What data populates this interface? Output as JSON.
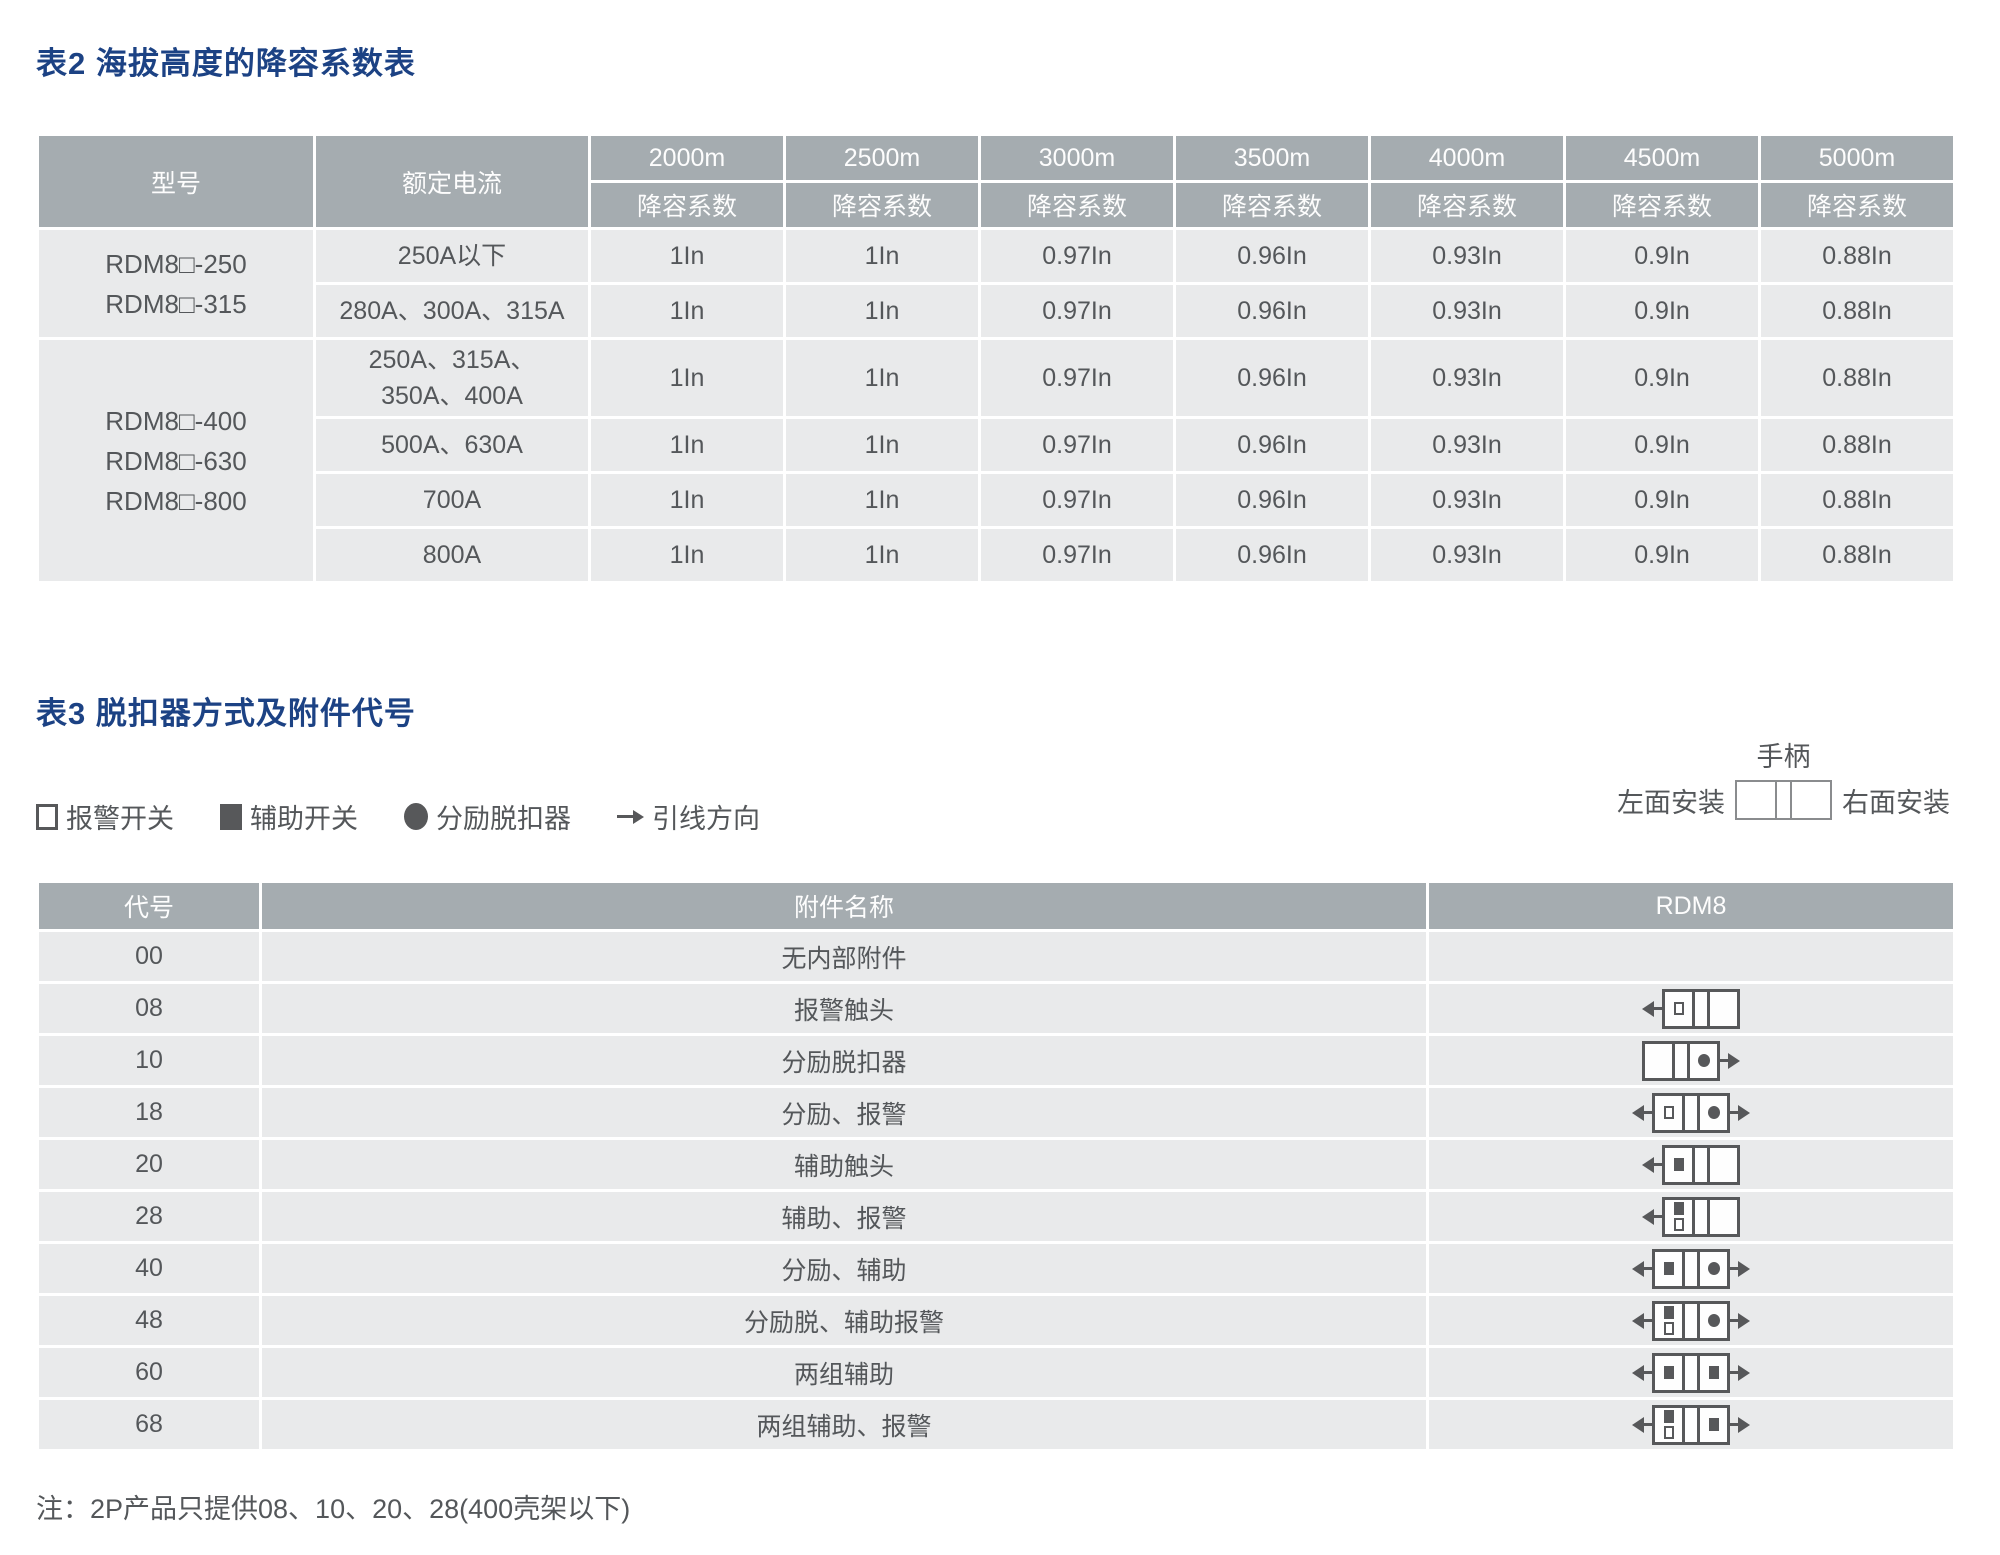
{
  "table2": {
    "title": "表2 海拔高度的降容系数表",
    "col_model": "型号",
    "col_current": "额定电流",
    "subheader": "降容系数",
    "altitudes": [
      "2000m",
      "2500m",
      "3000m",
      "3500m",
      "4000m",
      "4500m",
      "5000m"
    ],
    "groups": [
      {
        "models": "RDM8□-250\nRDM8□-315",
        "rows": [
          {
            "current": "250A以下",
            "values": [
              "1In",
              "1In",
              "0.97In",
              "0.96In",
              "0.93In",
              "0.9In",
              "0.88In"
            ]
          },
          {
            "current": "280A、300A、315A",
            "values": [
              "1In",
              "1In",
              "0.97In",
              "0.96In",
              "0.93In",
              "0.9In",
              "0.88In"
            ]
          }
        ]
      },
      {
        "models": "RDM8□-400\nRDM8□-630\nRDM8□-800",
        "rows": [
          {
            "current": "250A、315A、\n350A、400A",
            "values": [
              "1In",
              "1In",
              "0.97In",
              "0.96In",
              "0.93In",
              "0.9In",
              "0.88In"
            ]
          },
          {
            "current": "500A、630A",
            "values": [
              "1In",
              "1In",
              "0.97In",
              "0.96In",
              "0.93In",
              "0.9In",
              "0.88In"
            ]
          },
          {
            "current": "700A",
            "values": [
              "1In",
              "1In",
              "0.97In",
              "0.96In",
              "0.93In",
              "0.9In",
              "0.88In"
            ]
          },
          {
            "current": "800A",
            "values": [
              "1In",
              "1In",
              "0.97In",
              "0.96In",
              "0.93In",
              "0.9In",
              "0.88In"
            ]
          }
        ]
      }
    ]
  },
  "table3": {
    "title": "表3 脱扣器方式及附件代号",
    "legend": [
      {
        "symbol": "square-outline",
        "label": "报警开关"
      },
      {
        "symbol": "square-filled",
        "label": "辅助开关"
      },
      {
        "symbol": "circle-filled",
        "label": "分励脱扣器"
      },
      {
        "symbol": "arrow-right",
        "label": "引线方向"
      }
    ],
    "handle": {
      "label": "手柄",
      "left": "左面安装",
      "right": "右面安装"
    },
    "headers": {
      "code": "代号",
      "name": "附件名称",
      "product": "RDM8"
    },
    "rows": [
      {
        "code": "00",
        "name": "无内部附件",
        "diagram": null
      },
      {
        "code": "08",
        "name": "报警触头",
        "diagram": {
          "left": [
            "alarm"
          ],
          "right": [],
          "arrow_left": true,
          "arrow_right": false
        }
      },
      {
        "code": "10",
        "name": "分励脱扣器",
        "diagram": {
          "left": [],
          "right": [
            "shunt"
          ],
          "arrow_left": false,
          "arrow_right": true
        }
      },
      {
        "code": "18",
        "name": "分励、报警",
        "diagram": {
          "left": [
            "alarm"
          ],
          "right": [
            "shunt"
          ],
          "arrow_left": true,
          "arrow_right": true
        }
      },
      {
        "code": "20",
        "name": "辅助触头",
        "diagram": {
          "left": [
            "aux"
          ],
          "right": [],
          "arrow_left": true,
          "arrow_right": false
        }
      },
      {
        "code": "28",
        "name": "辅助、报警",
        "diagram": {
          "left": [
            "aux",
            "alarm"
          ],
          "right": [],
          "arrow_left": true,
          "arrow_right": false
        }
      },
      {
        "code": "40",
        "name": "分励、辅助",
        "diagram": {
          "left": [
            "aux"
          ],
          "right": [
            "shunt"
          ],
          "arrow_left": true,
          "arrow_right": true
        }
      },
      {
        "code": "48",
        "name": "分励脱、辅助报警",
        "diagram": {
          "left": [
            "aux",
            "alarm"
          ],
          "right": [
            "shunt"
          ],
          "arrow_left": true,
          "arrow_right": true
        }
      },
      {
        "code": "60",
        "name": "两组辅助",
        "diagram": {
          "left": [
            "aux"
          ],
          "right": [
            "aux"
          ],
          "arrow_left": true,
          "arrow_right": true
        }
      },
      {
        "code": "68",
        "name": "两组辅助、报警",
        "diagram": {
          "left": [
            "aux",
            "alarm"
          ],
          "right": [
            "aux"
          ],
          "arrow_left": true,
          "arrow_right": true
        }
      }
    ],
    "note": "注：2P产品只提供08、10、20、28(400壳架以下)"
  },
  "colors": {
    "title_blue": "#1c4284",
    "header_gray": "#a5acb0",
    "row_gray": "#e9eaeb",
    "text_gray": "#54575a",
    "diagram_stroke": "#57585a"
  }
}
